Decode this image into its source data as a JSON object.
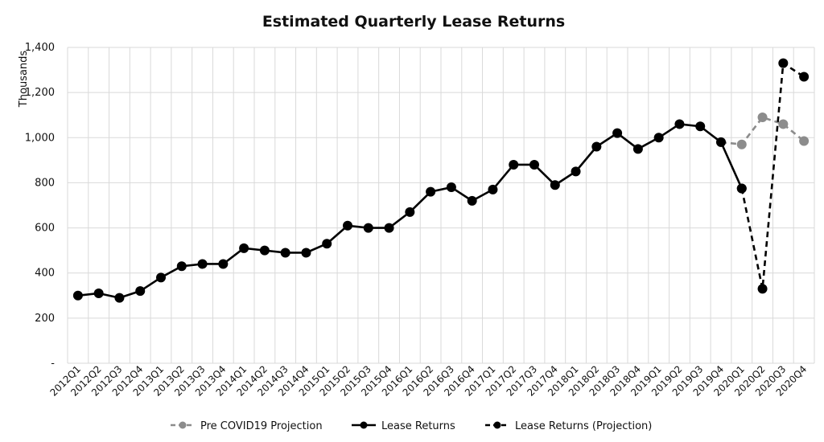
{
  "chart_data": {
    "type": "line",
    "title": "Estimated Quarterly Lease Returns",
    "ylabel": "Thousands",
    "xlabel": "",
    "ylim": [
      0,
      1400
    ],
    "yticks": [
      0,
      200,
      400,
      600,
      800,
      1000,
      1200,
      1400
    ],
    "ytick_labels": [
      "-",
      "200",
      "400",
      "600",
      "800",
      "1,000",
      "1,200",
      "1,400"
    ],
    "grid": true,
    "legend_position": "bottom",
    "categories": [
      "2012Q1",
      "2012Q2",
      "2012Q3",
      "2012Q4",
      "2013Q1",
      "2013Q2",
      "2013Q3",
      "2013Q4",
      "2014Q1",
      "2014Q2",
      "2014Q3",
      "2014Q4",
      "2015Q1",
      "2015Q2",
      "2015Q3",
      "2015Q4",
      "2016Q1",
      "2016Q2",
      "2016Q3",
      "2016Q4",
      "2017Q1",
      "2017Q2",
      "2017Q3",
      "2017Q4",
      "2018Q1",
      "2018Q2",
      "2018Q3",
      "2018Q4",
      "2019Q1",
      "2019Q2",
      "2019Q3",
      "2019Q4",
      "2020Q1",
      "2020Q2",
      "2020Q3",
      "2020Q4"
    ],
    "series": [
      {
        "name": "Pre COVID19 Projection",
        "color": "#8c8c8c",
        "style": "dashed",
        "values": [
          null,
          null,
          null,
          null,
          null,
          null,
          null,
          null,
          null,
          null,
          null,
          null,
          null,
          null,
          null,
          null,
          null,
          null,
          null,
          null,
          null,
          null,
          null,
          null,
          null,
          null,
          null,
          null,
          null,
          null,
          null,
          980,
          970,
          1090,
          1060,
          985
        ]
      },
      {
        "name": "Lease Returns",
        "color": "#000000",
        "style": "solid",
        "values": [
          300,
          310,
          290,
          320,
          380,
          430,
          440,
          440,
          510,
          500,
          490,
          490,
          530,
          610,
          600,
          600,
          670,
          760,
          780,
          720,
          770,
          880,
          880,
          790,
          850,
          960,
          1020,
          950,
          1000,
          1060,
          1050,
          980,
          775,
          null,
          null,
          null
        ]
      },
      {
        "name": "Lease Returns (Projection)",
        "color": "#000000",
        "style": "dashed",
        "values": [
          null,
          null,
          null,
          null,
          null,
          null,
          null,
          null,
          null,
          null,
          null,
          null,
          null,
          null,
          null,
          null,
          null,
          null,
          null,
          null,
          null,
          null,
          null,
          null,
          null,
          null,
          null,
          null,
          null,
          null,
          null,
          null,
          775,
          330,
          1330,
          1270
        ]
      }
    ]
  }
}
